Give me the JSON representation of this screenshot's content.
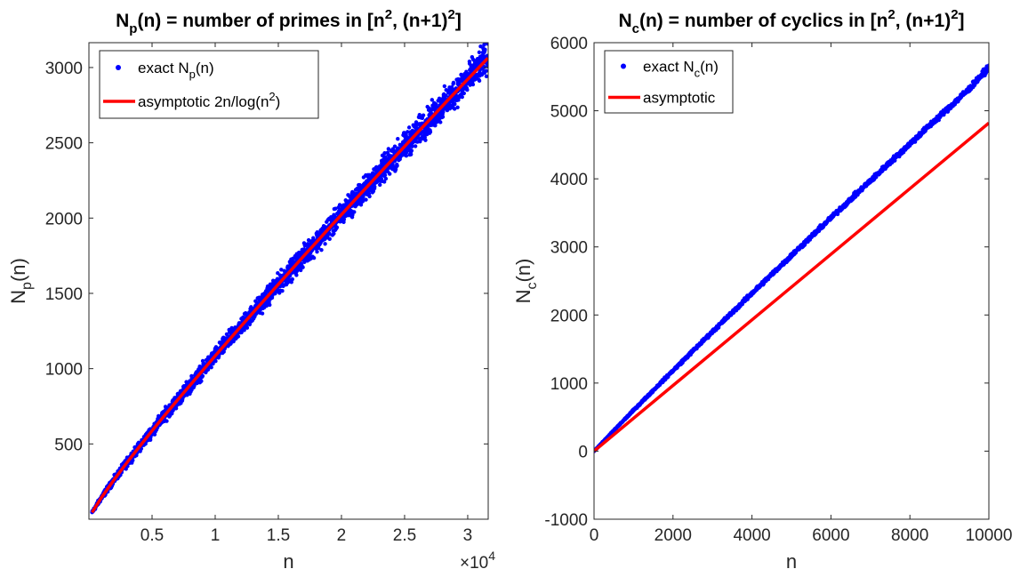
{
  "chart_data": [
    {
      "type": "scatter",
      "title": "N_p(n) = number of primes in [n², (n+1)²]",
      "title_parts": {
        "main": "N",
        "sub": "p",
        "mid": "(n) = number of primes in [n",
        "sup1": "2",
        "mid2": ", (n+1)",
        "sup2": "2",
        "end": "]"
      },
      "xlabel": "n",
      "ylabel": "N_p(n)",
      "ylabel_parts": {
        "main": "N",
        "sub": "p",
        "end": "(n)"
      },
      "x_exponent_label": "×10",
      "x_exponent": "4",
      "xlim": [
        0,
        31623
      ],
      "ylim": [
        0,
        3165
      ],
      "xticks": [
        5000,
        10000,
        15000,
        20000,
        25000,
        30000
      ],
      "xtick_labels": [
        "0.5",
        "1",
        "1.5",
        "2",
        "2.5",
        "3"
      ],
      "yticks": [
        500,
        1000,
        1500,
        2000,
        2500,
        3000
      ],
      "ytick_labels": [
        "500",
        "1000",
        "1500",
        "2000",
        "2500",
        "3000"
      ],
      "grid": false,
      "legend_position": "top-left",
      "series": [
        {
          "name": "exact N_p(n)",
          "legend_parts": {
            "main": "exact N",
            "sub": "p",
            "end": "(n)"
          },
          "kind": "scatter",
          "color": "#0000ff",
          "x": [
            250,
            1000,
            2000,
            3000,
            4000,
            5000,
            6000,
            7000,
            8000,
            9000,
            10000,
            11000,
            12000,
            13000,
            14000,
            15000,
            16000,
            17000,
            18000,
            19000,
            20000,
            21000,
            22000,
            23000,
            24000,
            25000,
            26000,
            27000,
            28000,
            29000,
            30000,
            31000,
            31600
          ],
          "y": [
            45,
            145,
            263,
            375,
            482,
            587,
            690,
            790,
            889,
            987,
            1085,
            1181,
            1277,
            1372,
            1466,
            1560,
            1653,
            1747,
            1838,
            1931,
            2023,
            2115,
            2205,
            2296,
            2386,
            2476,
            2566,
            2655,
            2745,
            2834,
            2922,
            3010,
            3063
          ],
          "spread": [
            8,
            15,
            20,
            25,
            28,
            32,
            36,
            38,
            40,
            42,
            44,
            46,
            48,
            50,
            52,
            54,
            56,
            58,
            60,
            62,
            64,
            66,
            68,
            70,
            72,
            74,
            76,
            78,
            80,
            82,
            84,
            86,
            88
          ]
        },
        {
          "name": "asymptotic 2n/log(n²)",
          "legend_parts": {
            "main": "asymptotic 2n/log(n",
            "sup": "2",
            "end": ")"
          },
          "kind": "line",
          "color": "#ff0000",
          "x": [
            250,
            1000,
            2000,
            3000,
            4000,
            5000,
            6000,
            7000,
            8000,
            9000,
            10000,
            11000,
            12000,
            13000,
            14000,
            15000,
            16000,
            17000,
            18000,
            19000,
            20000,
            21000,
            22000,
            23000,
            24000,
            25000,
            26000,
            27000,
            28000,
            29000,
            30000,
            31000,
            31600
          ],
          "y": [
            45,
            145,
            263,
            375,
            482,
            587,
            690,
            790,
            889,
            987,
            1085,
            1181,
            1277,
            1372,
            1466,
            1560,
            1653,
            1747,
            1838,
            1931,
            2023,
            2115,
            2205,
            2296,
            2386,
            2476,
            2566,
            2655,
            2745,
            2834,
            2922,
            3010,
            3063
          ]
        }
      ]
    },
    {
      "type": "scatter",
      "title": "N_c(n) = number of cyclics in [n², (n+1)²]",
      "title_parts": {
        "main": "N",
        "sub": "c",
        "mid": "(n) = number of cyclics in [n",
        "sup1": "2",
        "mid2": ", (n+1)",
        "sup2": "2",
        "end": "]"
      },
      "xlabel": "n",
      "ylabel": "N_c(n)",
      "ylabel_parts": {
        "main": "N",
        "sub": "c",
        "end": "(n)"
      },
      "xlim": [
        0,
        10000
      ],
      "ylim": [
        -1000,
        6000
      ],
      "xticks": [
        0,
        2000,
        4000,
        6000,
        8000,
        10000
      ],
      "xtick_labels": [
        "0",
        "2000",
        "4000",
        "6000",
        "8000",
        "10000"
      ],
      "yticks": [
        -1000,
        0,
        1000,
        2000,
        3000,
        4000,
        5000,
        6000
      ],
      "ytick_labels": [
        "-1000",
        "0",
        "1000",
        "2000",
        "3000",
        "4000",
        "5000",
        "6000"
      ],
      "grid": false,
      "legend_position": "top-left",
      "series": [
        {
          "name": "exact N_c(n)",
          "legend_parts": {
            "main": "exact N",
            "sub": "c",
            "end": "(n)"
          },
          "kind": "scatter",
          "color": "#0000ff",
          "x": [
            0,
            500,
            1000,
            1500,
            2000,
            2500,
            3000,
            3500,
            4000,
            4500,
            5000,
            5500,
            6000,
            6500,
            7000,
            7500,
            8000,
            8500,
            9000,
            9500,
            10000
          ],
          "y": [
            0,
            303,
            600,
            893,
            1183,
            1470,
            1755,
            2037,
            2318,
            2597,
            2875,
            3151,
            3426,
            3700,
            3972,
            4244,
            4514,
            4784,
            5053,
            5320,
            5640
          ],
          "spread": [
            2,
            8,
            12,
            15,
            18,
            20,
            22,
            24,
            25,
            26,
            27,
            28,
            29,
            30,
            31,
            32,
            33,
            34,
            35,
            36,
            38
          ]
        },
        {
          "name": "asymptotic",
          "legend_parts": {
            "main": "asymptotic"
          },
          "kind": "line",
          "color": "#ff0000",
          "x": [
            0,
            10000
          ],
          "y": [
            0,
            4820
          ]
        }
      ]
    }
  ]
}
